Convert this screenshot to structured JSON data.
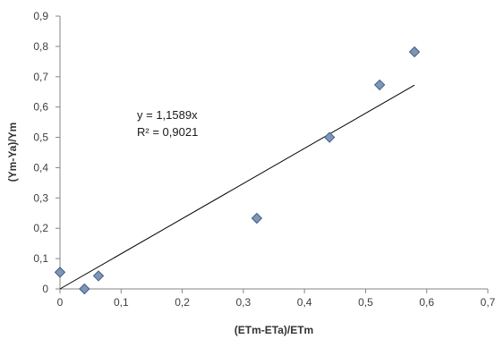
{
  "chart_data": {
    "type": "scatter",
    "title": "",
    "xlabel": "(ETm-ETa)/ETm",
    "ylabel": "(Ym-Ya)/Ym",
    "xlim": [
      0,
      0.7
    ],
    "ylim": [
      0,
      0.9
    ],
    "x_ticks": [
      "0",
      "0,1",
      "0,2",
      "0,3",
      "0,4",
      "0,5",
      "0,6",
      "0,7"
    ],
    "y_ticks": [
      "0",
      "0,1",
      "0,2",
      "0,3",
      "0,4",
      "0,5",
      "0,6",
      "0,7",
      "0,8",
      "0,9"
    ],
    "grid": false,
    "legend": "none",
    "points": [
      {
        "x": 0.0,
        "y": 0.055
      },
      {
        "x": 0.04,
        "y": 0.0
      },
      {
        "x": 0.063,
        "y": 0.043
      },
      {
        "x": 0.322,
        "y": 0.233
      },
      {
        "x": 0.441,
        "y": 0.5
      },
      {
        "x": 0.523,
        "y": 0.673
      },
      {
        "x": 0.58,
        "y": 0.782
      }
    ],
    "trendline": {
      "slope": 1.1589,
      "intercept": 0,
      "x_range": [
        0,
        0.58
      ]
    },
    "annotations": [
      "y = 1,1589x",
      "R² = 0,9021"
    ],
    "marker_color": "#7f95b5",
    "marker_edge_color": "#3f5f8a",
    "line_color": "#000000"
  }
}
